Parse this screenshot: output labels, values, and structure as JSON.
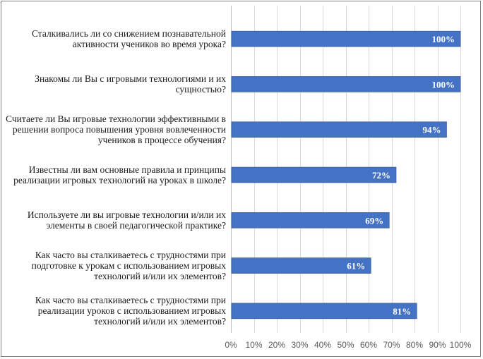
{
  "chart_data": {
    "type": "bar",
    "orientation": "horizontal",
    "categories": [
      "Сталкивались ли со снижением познавательной активности учеников во время урока?",
      "Знакомы ли Вы с игровыми технологиями и их сущностью?",
      "Считаете ли Вы игровые технологии эффективными в решении вопроса повышения уровня вовлеченности учеников в процессе обучения?",
      "Известны ли вам основные правила и принципы реализации игровых технологий на уроках в школе?",
      "Используете ли вы игровые технологии и/или их элементы в своей педагогической практике?",
      "Как часто вы сталкиваетесь с трудностями при подготовке к урокам с использованием игровых технологий и/или их элементов?",
      "Как часто вы сталкиваетесь с трудностями при реализации уроков с использованием игровых технологий и/или их элементов?"
    ],
    "category_lines": [
      [
        "Сталкивались ли со снижением познавательной",
        "активности учеников во время урока?"
      ],
      [
        "Знакомы ли Вы с игровыми технологиями и их",
        "сущностью?"
      ],
      [
        "Считаете ли Вы игровые технологии эффективными в",
        "решении вопроса повышения уровня вовлеченности",
        "учеников в процессе обучения?"
      ],
      [
        "Известны ли вам основные правила и принципы",
        "реализации игровых технологий на уроках в школе?"
      ],
      [
        "Используете ли вы игровые технологии и/или их",
        "элементы в своей педагогической практике?"
      ],
      [
        "Как часто вы сталкиваетесь с трудностями при",
        "подготовке к урокам с использованием игровых",
        "технологий и/или их элементов?"
      ],
      [
        "Как часто вы сталкиваетесь с трудностями при",
        "реализации уроков с использованием игровых",
        "технологий и/или их элементов?"
      ]
    ],
    "values": [
      100,
      100,
      94,
      72,
      69,
      61,
      81
    ],
    "data_labels": [
      "100%",
      "100%",
      "94%",
      "72%",
      "69%",
      "61%",
      "81%"
    ],
    "xlim": [
      0,
      100
    ],
    "x_ticks": [
      0,
      10,
      20,
      30,
      40,
      50,
      60,
      70,
      80,
      90,
      100
    ],
    "x_tick_labels": [
      "0%",
      "10%",
      "20%",
      "30%",
      "40%",
      "50%",
      "60%",
      "70%",
      "80%",
      "90%",
      "100%"
    ],
    "grid": true,
    "legend": "none",
    "colors": {
      "bar": "#4472c4",
      "bar_border": "#2f528f",
      "grid": "#d9d9d9",
      "axis": "#bfbfbf",
      "tick_text": "#595959",
      "data_label": "#ffffff",
      "category_text": "#1a1a1a",
      "frame": "#7f7f7f"
    }
  }
}
